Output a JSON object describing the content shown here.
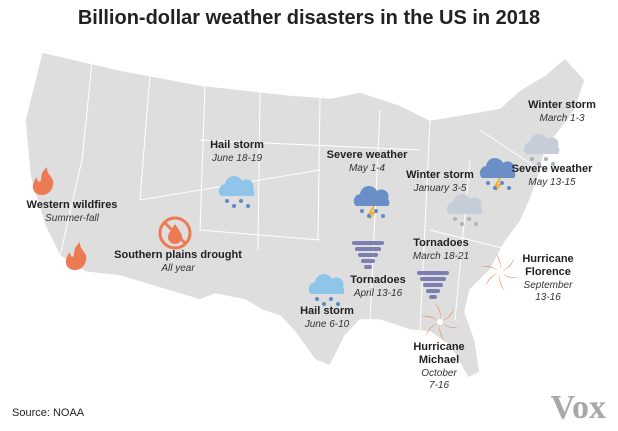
{
  "title": "Billion-dollar weather disasters in the US in 2018",
  "events": [
    {
      "name": [
        "Western wildfires"
      ],
      "date": [
        "Summer-fall"
      ]
    },
    {
      "name": [
        "Southern plains drought"
      ],
      "date": [
        "All year"
      ]
    },
    {
      "name": [
        "Hail storm"
      ],
      "date": [
        "June 18-19"
      ]
    },
    {
      "name": [
        "Severe weather"
      ],
      "date": [
        "May 1-4"
      ]
    },
    {
      "name": [
        "Winter storm"
      ],
      "date": [
        "January 3-5"
      ]
    },
    {
      "name": [
        "Winter storm"
      ],
      "date": [
        "March 1-3"
      ]
    },
    {
      "name": [
        "Severe weather"
      ],
      "date": [
        "May 13-15"
      ]
    },
    {
      "name": [
        "Tornadoes"
      ],
      "date": [
        "March 18-21"
      ]
    },
    {
      "name": [
        "Tornadoes"
      ],
      "date": [
        "April 13-16"
      ]
    },
    {
      "name": [
        "Hail storm"
      ],
      "date": [
        "June 6-10"
      ]
    },
    {
      "name": [
        "Hurricane",
        "Florence"
      ],
      "date": [
        "September",
        "13-16"
      ]
    },
    {
      "name": [
        "Hurricane",
        "Michael"
      ],
      "date": [
        "October",
        "7-16"
      ]
    }
  ],
  "source": "Source: NOAA",
  "logo": "Vox"
}
